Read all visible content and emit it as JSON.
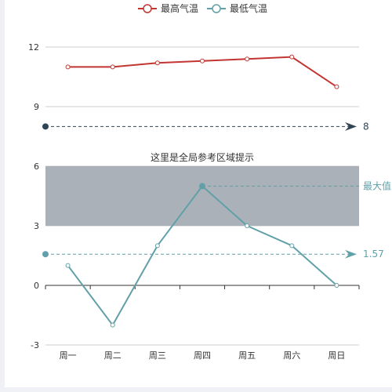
{
  "chart_data": {
    "type": "line",
    "categories": [
      "周一",
      "周二",
      "周三",
      "周四",
      "周五",
      "周六",
      "周日"
    ],
    "series": [
      {
        "name": "最高气温",
        "values": [
          11,
          11,
          11.2,
          11.3,
          11.4,
          11.5,
          10
        ],
        "color": "#c23531"
      },
      {
        "name": "最低气温",
        "values": [
          1,
          -2,
          2,
          5,
          3,
          2,
          0
        ],
        "color": "#61a0a8"
      }
    ],
    "ylim": [
      -3,
      12
    ],
    "yticks": [
      -3,
      0,
      3,
      6,
      9,
      12
    ],
    "y_gridlines": true,
    "legend_placement": "top-center",
    "mark_area": {
      "label": "这里是全局参考区域提示",
      "y_range": [
        3,
        6
      ],
      "color": "#a5adb5"
    },
    "mark_lines": [
      {
        "label": "8",
        "value": 8,
        "color": "#2f4554"
      },
      {
        "label": "1.57",
        "value": 1.57,
        "color": "#61a0a8"
      },
      {
        "label": "最大值",
        "value": 5,
        "category_start": "周四",
        "color": "#61a0a8"
      }
    ]
  }
}
